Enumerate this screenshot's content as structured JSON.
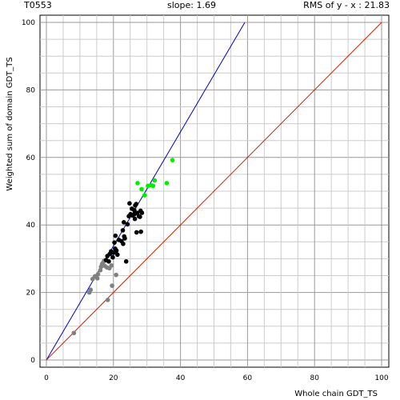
{
  "header": {
    "target": "T0553",
    "slope": "slope: 1.69",
    "rms": "RMS of  y - x : 21.83"
  },
  "chart_data": {
    "type": "scatter",
    "xlabel": "Whole chain GDT_TS",
    "ylabel": "Weighted sum of domain GDT_TS",
    "xlim": [
      0,
      100
    ],
    "ylim": [
      0,
      100
    ],
    "x_ticks": [
      "0",
      "20",
      "40",
      "60",
      "80",
      "100"
    ],
    "y_ticks": [
      "0",
      "20",
      "40",
      "60",
      "80",
      "100"
    ],
    "grid": true,
    "lines": [
      {
        "color": "#0000cc",
        "slope": 1.69,
        "x": [
          0,
          59.2
        ],
        "y": [
          0,
          100
        ]
      },
      {
        "color": "#cc2200",
        "slope": 1,
        "x": [
          0,
          100
        ],
        "y": [
          0,
          100
        ]
      }
    ],
    "series": [
      {
        "color": "#808080",
        "points": [
          [
            8.2,
            8
          ],
          [
            18.3,
            17.8
          ],
          [
            19.6,
            22
          ],
          [
            20.8,
            25.2
          ],
          [
            12.8,
            20
          ],
          [
            13.2,
            20.8
          ],
          [
            13.8,
            24
          ],
          [
            14.5,
            24.8
          ],
          [
            15.4,
            25.4
          ],
          [
            15.2,
            24.2
          ],
          [
            16.1,
            26.6
          ],
          [
            16.6,
            28.4
          ],
          [
            16.3,
            27.6
          ],
          [
            17.5,
            27.8
          ],
          [
            18.1,
            27.4
          ],
          [
            18.8,
            27.2
          ],
          [
            19.4,
            28
          ],
          [
            17.2,
            29.4
          ],
          [
            19.6,
            31.2
          ],
          [
            16.9,
            28.8
          ]
        ]
      },
      {
        "color": "#000000",
        "points": [
          [
            17.8,
            29.6
          ],
          [
            18.2,
            30.8
          ],
          [
            18.6,
            29.2
          ],
          [
            18.9,
            31.4
          ],
          [
            19.3,
            32.2
          ],
          [
            19.8,
            30.4
          ],
          [
            20.1,
            31.8
          ],
          [
            20.5,
            33
          ],
          [
            20.9,
            32.4
          ],
          [
            21.2,
            31.2
          ],
          [
            20.3,
            34.8
          ],
          [
            21.6,
            35.6
          ],
          [
            22.4,
            35.2
          ],
          [
            22.9,
            34.4
          ],
          [
            23.4,
            36
          ],
          [
            23.8,
            29.2
          ],
          [
            23.2,
            36.6
          ],
          [
            20.6,
            36.8
          ],
          [
            22.8,
            38.4
          ],
          [
            23.1,
            40.8
          ],
          [
            24.2,
            40.2
          ],
          [
            24.6,
            42.6
          ],
          [
            25.1,
            43.2
          ],
          [
            25.7,
            42.8
          ],
          [
            26.2,
            44.4
          ],
          [
            26.5,
            45.8
          ],
          [
            26.8,
            46.2
          ],
          [
            27.1,
            43.6
          ],
          [
            27.6,
            42.6
          ],
          [
            28.1,
            44.2
          ],
          [
            28.5,
            43.6
          ],
          [
            26.4,
            41.8
          ],
          [
            26.9,
            37.8
          ],
          [
            28.2,
            38
          ],
          [
            24.8,
            46.4
          ],
          [
            25.5,
            44.8
          ],
          [
            27.9,
            42.4
          ],
          [
            26.3,
            43.2
          ]
        ]
      },
      {
        "color": "#00ee00",
        "points": [
          [
            27.2,
            52.4
          ],
          [
            28.4,
            50.6
          ],
          [
            29.3,
            48.8
          ],
          [
            30.3,
            51.6
          ],
          [
            31.2,
            51.8
          ],
          [
            32.3,
            53.2
          ],
          [
            31.8,
            51.6
          ],
          [
            35.9,
            52.4
          ],
          [
            37.6,
            59.2
          ]
        ]
      }
    ]
  }
}
